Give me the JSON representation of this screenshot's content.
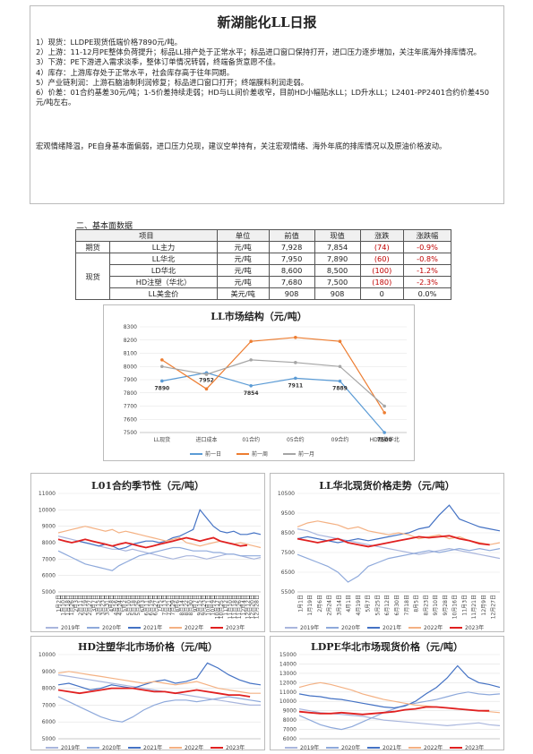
{
  "report": {
    "title": "新湖能化LL日报",
    "items": [
      "1）现货：LLDPE现货低端价格7890元/吨。",
      "2）上游：11-12月PE整体负荷提升；标品LL排产处于正常水平；标品进口窗口保持打开，进口压力逐步增加，关注年底海外排库情况。",
      "3）下游：PE下游进入需求淡季，整体订单情况转弱，终端备货意愿不佳。",
      "4）库存：上游库存处于正常水平，社会库存高于往年同期。",
      "5）产业链利润：上游石脑油制利润修复；标品进口窗口打开；终端膜料利润走弱。",
      "6）价差：01合约基差30元/吨；1-5价差持续走弱；HD与LL间价差收窄，目前HD小幅贴水LL；LD升水LL；L2401-PP2401合约价差450元/吨左右。"
    ],
    "summary": "宏观情绪降温，PE自身基本面偏弱，进口压力兑现，建议空单持有，关注宏观情绪、海外年底的排库情况以及原油价格波动。"
  },
  "fundamentals": {
    "section_title": "二、基本面数据",
    "headers": [
      "项目",
      "",
      "单位",
      "前值",
      "现值",
      "涨跌",
      "涨跌幅"
    ],
    "group_futures": "期货",
    "group_spot": "现货",
    "rows": [
      {
        "item": "LL主力",
        "unit": "元/吨",
        "prev": "7,928",
        "curr": "7,854",
        "chg": "(74)",
        "pct": "-0.9%"
      },
      {
        "item": "LL华北",
        "unit": "元/吨",
        "prev": "7,950",
        "curr": "7,890",
        "chg": "(60)",
        "pct": "-0.8%"
      },
      {
        "item": "LD华北",
        "unit": "元/吨",
        "prev": "8,600",
        "curr": "8,500",
        "chg": "(100)",
        "pct": "-1.2%"
      },
      {
        "item": "HD注塑（华北）",
        "unit": "元/吨",
        "prev": "7,680",
        "curr": "7,500",
        "chg": "(180)",
        "pct": "-2.3%"
      },
      {
        "item": "LL美金价",
        "unit": "美元/吨",
        "prev": "908",
        "curr": "908",
        "chg": "0",
        "pct": "0.0%"
      }
    ]
  },
  "charts": {
    "structure": {
      "title": "LL市场结构（元/吨）"
    },
    "seasonal": [
      {
        "title": "L01合约季节性（元/吨）"
      },
      {
        "title": "LL华北现货价格走势（元/吨）"
      },
      {
        "title": "HD注塑华北市场价格（元/吨）"
      },
      {
        "title": "LDPE华北市场现货价格（元/吨）"
      }
    ]
  },
  "chart_data": [
    {
      "type": "line",
      "title": "LL市场结构（元/吨）",
      "categories": [
        "LL现货",
        "进口成本",
        "01合约",
        "05合约",
        "09合约",
        "HD现货华北"
      ],
      "ylim": [
        7500,
        8300
      ],
      "yticks": [
        7500,
        7600,
        7700,
        7800,
        7900,
        8000,
        8100,
        8200,
        8300
      ],
      "series": [
        {
          "name": "前一日",
          "color": "#5b9bd5",
          "values": [
            7890,
            7952,
            7854,
            7911,
            7889,
            7500
          ],
          "labels": [
            "7890",
            "7952",
            "7854",
            "7911",
            "7889",
            "7500"
          ]
        },
        {
          "name": "前一周",
          "color": "#ed7d31",
          "values": [
            8050,
            7830,
            8190,
            8220,
            8190,
            7650
          ]
        },
        {
          "name": "前一月",
          "color": "#a5a5a5",
          "values": [
            8000,
            7940,
            8050,
            8030,
            8000,
            7700
          ]
        }
      ],
      "legend": "bottom"
    },
    {
      "type": "line",
      "title": "L01合约季节性（元/吨）",
      "ylim": [
        5000,
        11000
      ],
      "yticks": [
        5000,
        6000,
        7000,
        8000,
        9000,
        10000,
        11000
      ],
      "xticks": [
        "1月2日",
        "1月10日",
        "1月18日",
        "1月26日",
        "2月3日",
        "2月11日",
        "2月19日",
        "2月27日",
        "3月7日",
        "3月15日",
        "3月23日",
        "3月31日",
        "4月8日",
        "4月16日",
        "4月24日",
        "5月2日",
        "5月10日",
        "5月18日",
        "5月26日",
        "6月3日",
        "6月11日",
        "6月19日",
        "6月27日",
        "7月5日",
        "7月13日",
        "7月21日",
        "7月29日",
        "8月6日",
        "8月14日",
        "8月22日",
        "8月30日",
        "9月7日",
        "9月15日",
        "9月23日",
        "10月1日",
        "10月9日",
        "10月17日",
        "10月25日",
        "11月2日",
        "11月10日",
        "11月18日",
        "11月26日",
        "12月4日",
        "12月12日",
        "12月20日",
        "12月28日"
      ],
      "series": [
        {
          "name": "2019年",
          "color": "#a9b6dd",
          "values": [
            8400,
            8300,
            8200,
            8100,
            8000,
            7900,
            7800,
            7700,
            7600,
            7600,
            7500,
            7600,
            7500,
            7400,
            7300,
            7200,
            7100,
            7000,
            7100,
            7200,
            7200,
            7100,
            7000,
            7100,
            7200,
            7300,
            7300,
            7200,
            7100,
            7000,
            7100
          ]
        },
        {
          "name": "2020年",
          "color": "#8ea9db",
          "values": [
            7500,
            7300,
            7100,
            6900,
            6700,
            6600,
            6500,
            6400,
            6300,
            6600,
            6800,
            7000,
            7200,
            7300,
            7400,
            7500,
            7600,
            7700,
            7700,
            7600,
            7500,
            7500,
            7500,
            7400,
            7400,
            7300,
            7300,
            7200,
            7200,
            7200,
            7200
          ]
        },
        {
          "name": "2021年",
          "color": "#4472c4",
          "values": [
            8200,
            8100,
            8000,
            8100,
            8000,
            7900,
            7800,
            7900,
            7800,
            7600,
            7700,
            7900,
            8000,
            8100,
            8100,
            8000,
            8100,
            8300,
            8400,
            8600,
            8800,
            10000,
            9500,
            9000,
            8700,
            8600,
            8700,
            8500,
            8500,
            8600,
            8500
          ]
        },
        {
          "name": "2022年",
          "color": "#f4b183",
          "values": [
            8600,
            8700,
            8800,
            8900,
            9000,
            8900,
            8800,
            8700,
            8800,
            8600,
            8700,
            8600,
            8500,
            8400,
            8300,
            8200,
            8100,
            8200,
            8300,
            8000,
            7900,
            7800,
            7900,
            8000,
            8100,
            8000,
            7900,
            8000,
            7900,
            7800,
            7700
          ]
        },
        {
          "name": "2023年",
          "color": "#e02020",
          "values": [
            8200,
            8100,
            8000,
            8100,
            8200,
            8100,
            8000,
            7900,
            7800,
            7900,
            8000,
            7900,
            7800,
            7700,
            7800,
            7900,
            8000,
            8100,
            8200,
            8300,
            8200,
            8100,
            8200,
            8300,
            8100,
            8000,
            7900,
            7800,
            7850,
            null,
            null
          ]
        }
      ],
      "legend": "bottom"
    },
    {
      "type": "line",
      "title": "LL华北现货价格走势（元/吨）",
      "ylim": [
        5500,
        10500
      ],
      "yticks": [
        5500,
        6500,
        7500,
        8500,
        9500,
        10500
      ],
      "xticks": [
        "1月1日",
        "1月19日",
        "2月6日",
        "2月24日",
        "3月14日",
        "4月1日",
        "4月19日",
        "5月7日",
        "5月25日",
        "6月12日",
        "6月30日",
        "7月18日",
        "8月5日",
        "8月23日",
        "9月10日",
        "9月28日",
        "10月16日",
        "11月3日",
        "11月21日",
        "12月9日",
        "12月27日"
      ],
      "series": [
        {
          "name": "2019年",
          "color": "#a9b6dd",
          "values": [
            8700,
            8600,
            8400,
            8300,
            8200,
            8100,
            8000,
            7900,
            7800,
            7700,
            7600,
            7500,
            7400,
            7500,
            7600,
            7700,
            7600,
            7500,
            7400,
            7300,
            7200
          ]
        },
        {
          "name": "2020年",
          "color": "#8ea9db",
          "values": [
            7400,
            7200,
            7000,
            6800,
            6500,
            6000,
            6300,
            6800,
            7000,
            7200,
            7300,
            7400,
            7500,
            7600,
            7500,
            7600,
            7700,
            7600,
            7700,
            7600,
            7700
          ]
        },
        {
          "name": "2021年",
          "color": "#4472c4",
          "values": [
            8200,
            8300,
            8200,
            8100,
            8000,
            8100,
            8200,
            8100,
            8200,
            8300,
            8400,
            8500,
            8700,
            8800,
            9400,
            9900,
            9200,
            9000,
            8800,
            8700,
            8600
          ]
        },
        {
          "name": "2022年",
          "color": "#f4b183",
          "values": [
            8800,
            9000,
            9100,
            9000,
            8900,
            8700,
            8800,
            8600,
            8500,
            8400,
            8500,
            8400,
            8200,
            8300,
            8400,
            8200,
            8300,
            8100,
            8000,
            7900,
            8000
          ]
        },
        {
          "name": "2023年",
          "color": "#e02020",
          "values": [
            8200,
            8100,
            8000,
            8100,
            8200,
            8000,
            7900,
            7800,
            7900,
            8000,
            8100,
            8200,
            8300,
            8250,
            8300,
            8350,
            8200,
            8100,
            7950,
            7890,
            null
          ]
        }
      ],
      "legend": "bottom"
    },
    {
      "type": "line",
      "title": "HD注塑华北市场价格（元/吨）",
      "ylim": [
        5000,
        10000
      ],
      "yticks": [
        5000,
        6000,
        7000,
        8000,
        9000,
        10000
      ],
      "series": [
        {
          "name": "2019年",
          "color": "#a9b6dd",
          "values": [
            8800,
            8700,
            8600,
            8500,
            8400,
            8300,
            8200,
            8100,
            8000,
            7900,
            7800,
            7700,
            7600,
            7500,
            7400,
            7300,
            7200,
            7100,
            7000,
            7000
          ]
        },
        {
          "name": "2020年",
          "color": "#8ea9db",
          "values": [
            7500,
            7200,
            6900,
            6600,
            6300,
            6100,
            6000,
            6300,
            6700,
            7000,
            7200,
            7300,
            7300,
            7200,
            7300,
            7400,
            7500,
            7400,
            7300,
            7200
          ]
        },
        {
          "name": "2021年",
          "color": "#4472c4",
          "values": [
            8200,
            8300,
            8100,
            7900,
            8000,
            8200,
            8100,
            8000,
            8200,
            8400,
            8500,
            8300,
            8400,
            8600,
            9500,
            9200,
            8800,
            8500,
            8300,
            8200
          ]
        },
        {
          "name": "2022年",
          "color": "#f4b183",
          "values": [
            8900,
            9000,
            8900,
            8800,
            8700,
            8600,
            8500,
            8400,
            8300,
            8400,
            8300,
            8200,
            8300,
            8400,
            8200,
            8000,
            7900,
            7800,
            7700,
            7700
          ]
        },
        {
          "name": "2023年",
          "color": "#e02020",
          "values": [
            7900,
            7800,
            7700,
            7800,
            7900,
            8000,
            8000,
            8000,
            7900,
            7800,
            7800,
            7700,
            7800,
            7900,
            7800,
            7700,
            7600,
            7600,
            7500,
            null
          ]
        }
      ],
      "legend": "bottom"
    },
    {
      "type": "line",
      "title": "LDPE华北市场现货价格（元/吨）",
      "ylim": [
        6000,
        15000
      ],
      "yticks": [
        6000,
        7000,
        8000,
        9000,
        10000,
        11000,
        12000,
        13000,
        14000,
        15000
      ],
      "series": [
        {
          "name": "2019年",
          "color": "#a9b6dd",
          "values": [
            9200,
            9000,
            8800,
            8700,
            8600,
            8500,
            8400,
            8200,
            8000,
            7900,
            7800,
            7700,
            7600,
            7500,
            7400,
            7500,
            7600,
            7700,
            7500,
            7400
          ]
        },
        {
          "name": "2020年",
          "color": "#8ea9db",
          "values": [
            8500,
            8000,
            7500,
            7200,
            7000,
            7300,
            7800,
            8300,
            8800,
            9200,
            9600,
            9800,
            10000,
            10200,
            10500,
            10800,
            11000,
            10800,
            10700,
            10800
          ]
        },
        {
          "name": "2021年",
          "color": "#4472c4",
          "values": [
            10800,
            10600,
            10500,
            10300,
            10200,
            10000,
            9800,
            9600,
            9400,
            9300,
            9500,
            10000,
            10800,
            11500,
            12500,
            13800,
            12600,
            12000,
            11800,
            11500
          ]
        },
        {
          "name": "2022年",
          "color": "#f4b183",
          "values": [
            11500,
            11800,
            12000,
            11800,
            11500,
            11200,
            10800,
            10500,
            10200,
            10000,
            9800,
            9600,
            9500,
            9400,
            9300,
            9200,
            9100,
            9000,
            8900,
            8800
          ]
        },
        {
          "name": "2023年",
          "color": "#e02020",
          "values": [
            8900,
            8800,
            8700,
            8700,
            8800,
            8700,
            8600,
            8700,
            8800,
            8900,
            9100,
            9200,
            9400,
            9400,
            9300,
            9200,
            9100,
            9000,
            9000,
            null
          ]
        }
      ],
      "legend": "bottom"
    }
  ]
}
